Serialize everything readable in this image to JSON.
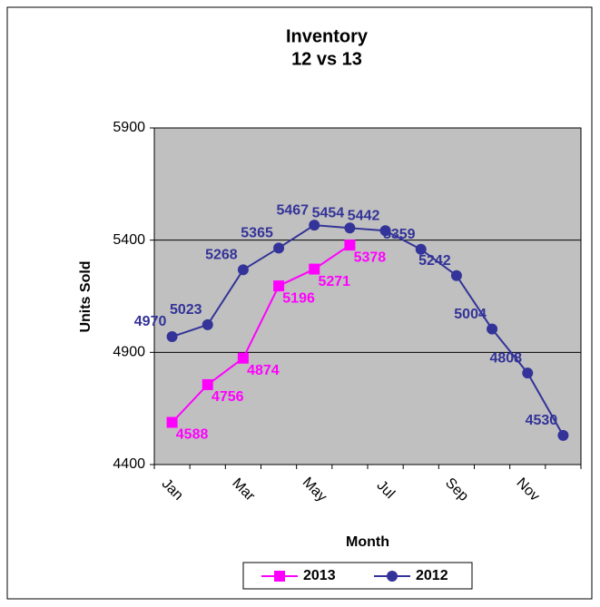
{
  "chart_data": {
    "type": "line",
    "title": "Inventory",
    "subtitle": "12 vs 13",
    "x_label": "Month",
    "y_label": "Units Sold",
    "categories": [
      "Jan",
      null,
      "Mar",
      null,
      "May",
      null,
      "Jul",
      null,
      "Sep",
      null,
      "Nov",
      null
    ],
    "series": [
      {
        "name": "2013",
        "color": "#ff00ff",
        "marker": "square",
        "values": [
          4588,
          4756,
          4874,
          5196,
          5271,
          5378,
          null,
          null,
          null,
          null,
          null,
          null
        ]
      },
      {
        "name": "2012",
        "color": "#333399",
        "marker": "circle",
        "values": [
          4970,
          5023,
          5268,
          5365,
          5467,
          5454,
          5442,
          5359,
          5242,
          5004,
          4808,
          4530
        ]
      }
    ],
    "ylim": [
      4400,
      5900
    ],
    "yticks": [
      4400,
      4900,
      5400,
      5900
    ],
    "grid": true,
    "legend": "bottom"
  }
}
